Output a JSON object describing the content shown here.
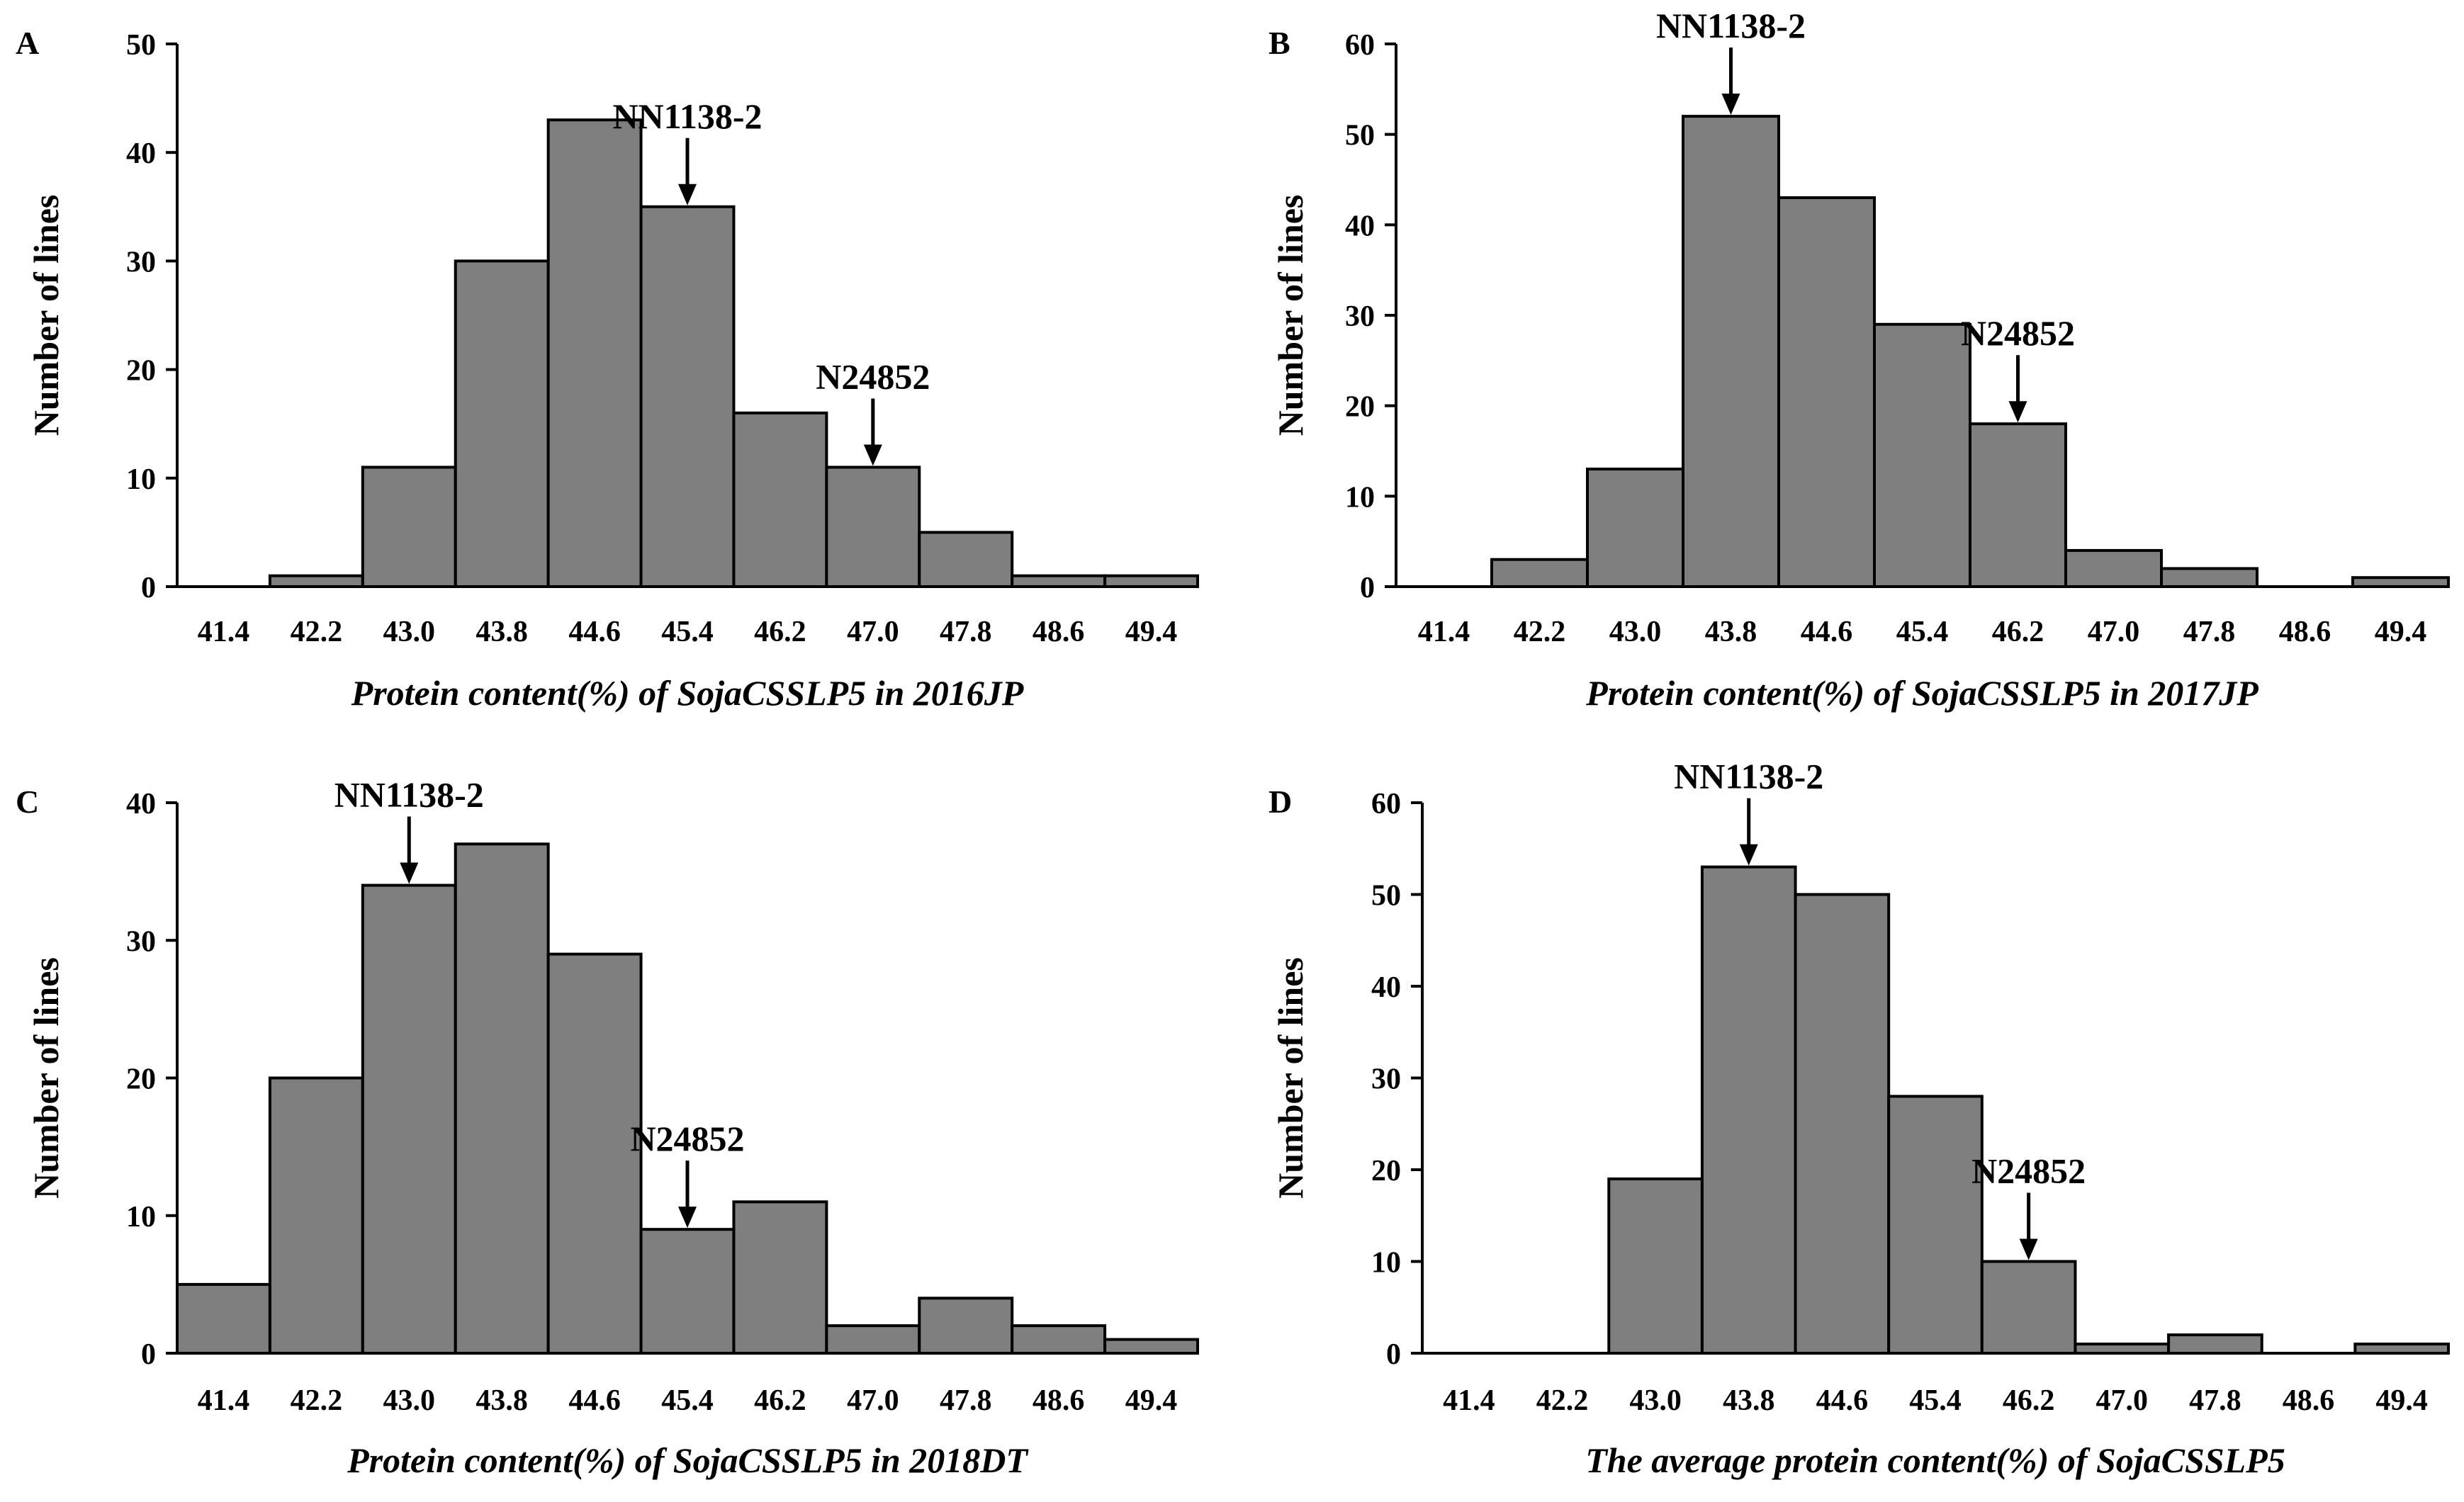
{
  "chart_data": [
    {
      "panel": "A",
      "type": "bar",
      "title": "",
      "xlabel": "Protein content(%) of SojaCSSLP5 in 2016JP",
      "ylabel": "Number of lines",
      "categories": [
        "41.4",
        "42.2",
        "43.0",
        "43.8",
        "44.6",
        "45.4",
        "46.2",
        "47.0",
        "47.8",
        "48.6",
        "49.4"
      ],
      "values": [
        0,
        1,
        11,
        30,
        43,
        35,
        16,
        11,
        5,
        1,
        1
      ],
      "ylim": [
        0,
        50
      ],
      "yticks": [
        0,
        10,
        20,
        30,
        40,
        50
      ],
      "annotations": [
        {
          "label": "NN1138-2",
          "bin": 5,
          "value": 35
        },
        {
          "label": "N24852",
          "bin": 7,
          "value": 11
        }
      ]
    },
    {
      "panel": "B",
      "type": "bar",
      "title": "",
      "xlabel": "Protein content(%) of SojaCSSLP5 in 2017JP",
      "ylabel": "Number of lines",
      "categories": [
        "41.4",
        "42.2",
        "43.0",
        "43.8",
        "44.6",
        "45.4",
        "46.2",
        "47.0",
        "47.8",
        "48.6",
        "49.4"
      ],
      "values": [
        0,
        3,
        13,
        52,
        43,
        29,
        18,
        4,
        2,
        0,
        1
      ],
      "ylim": [
        0,
        60
      ],
      "yticks": [
        0,
        10,
        20,
        30,
        40,
        50,
        60
      ],
      "annotations": [
        {
          "label": "NN1138-2",
          "bin": 3,
          "value": 52
        },
        {
          "label": "N24852",
          "bin": 6,
          "value": 18
        }
      ]
    },
    {
      "panel": "C",
      "type": "bar",
      "title": "",
      "xlabel": "Protein content(%) of SojaCSSLP5 in 2018DT",
      "ylabel": "Number of lines",
      "categories": [
        "41.4",
        "42.2",
        "43.0",
        "43.8",
        "44.6",
        "45.4",
        "46.2",
        "47.0",
        "47.8",
        "48.6",
        "49.4"
      ],
      "values": [
        5,
        20,
        34,
        37,
        29,
        9,
        11,
        2,
        4,
        2,
        1
      ],
      "ylim": [
        0,
        40
      ],
      "yticks": [
        0,
        10,
        20,
        30,
        40
      ],
      "annotations": [
        {
          "label": "NN1138-2",
          "bin": 2,
          "value": 34
        },
        {
          "label": "N24852",
          "bin": 5,
          "value": 9
        }
      ]
    },
    {
      "panel": "D",
      "type": "bar",
      "title": "",
      "xlabel": "The average protein content(%) of SojaCSSLP5",
      "ylabel": "Number of lines",
      "categories": [
        "41.4",
        "42.2",
        "43.0",
        "43.8",
        "44.6",
        "45.4",
        "46.2",
        "47.0",
        "47.8",
        "48.6",
        "49.4"
      ],
      "values": [
        0,
        0,
        19,
        53,
        50,
        28,
        10,
        1,
        2,
        0,
        1
      ],
      "ylim": [
        0,
        60
      ],
      "yticks": [
        0,
        10,
        20,
        30,
        40,
        50,
        60
      ],
      "annotations": [
        {
          "label": "NN1138-2",
          "bin": 3,
          "value": 53
        },
        {
          "label": "N24852",
          "bin": 6,
          "value": 10
        }
      ]
    }
  ]
}
